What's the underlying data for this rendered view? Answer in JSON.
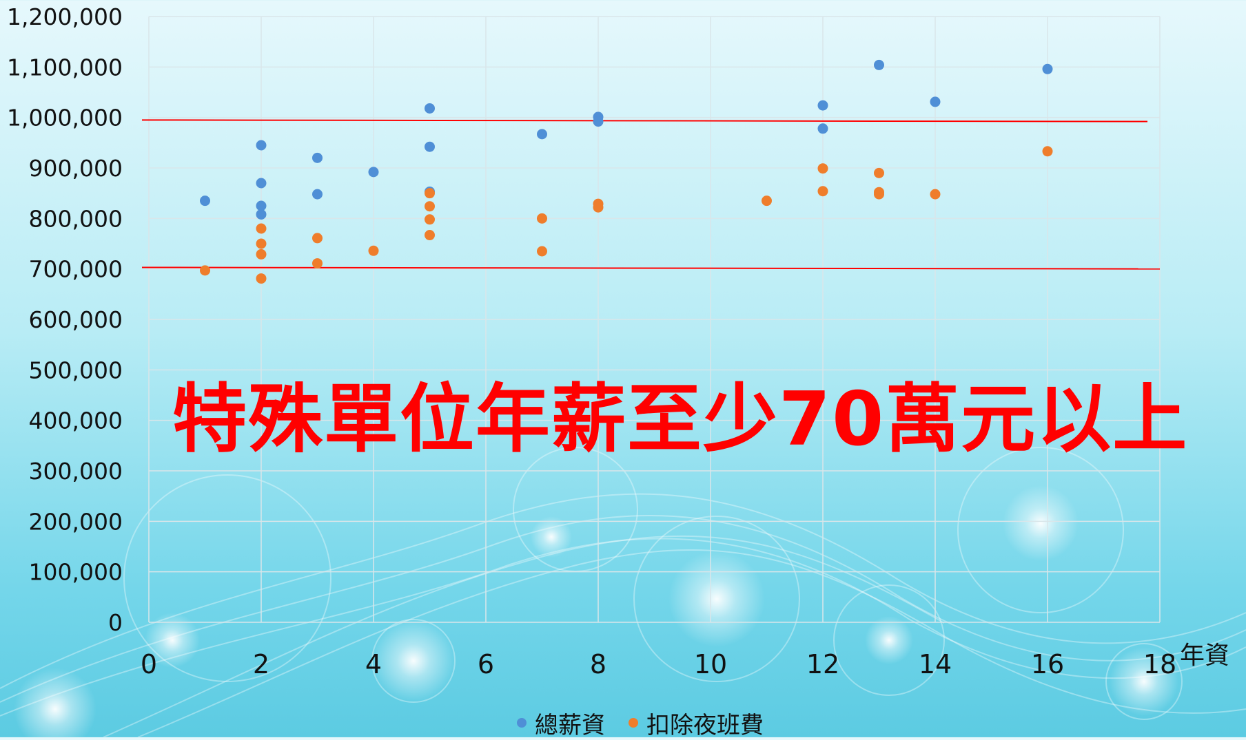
{
  "chart_data": {
    "type": "scatter",
    "title": "",
    "xlabel": "年資",
    "ylabel": "",
    "xlim": [
      0,
      18
    ],
    "ylim": [
      0,
      1200000
    ],
    "x_ticks": [
      "0",
      "2",
      "4",
      "6",
      "8",
      "10",
      "12",
      "14",
      "16",
      "18"
    ],
    "y_ticks": [
      "0",
      "100,000",
      "200,000",
      "300,000",
      "400,000",
      "500,000",
      "600,000",
      "700,000",
      "800,000",
      "900,000",
      "1,000,000",
      "1,100,000",
      "1,200,000"
    ],
    "grid": true,
    "legend_position": "bottom",
    "series": [
      {
        "name": "總薪資",
        "color": "#4f8fd6",
        "points": [
          [
            1,
            835000
          ],
          [
            2,
            945000
          ],
          [
            2,
            870000
          ],
          [
            2,
            825000
          ],
          [
            2,
            808000
          ],
          [
            3,
            920000
          ],
          [
            3,
            848000
          ],
          [
            4,
            892000
          ],
          [
            5,
            1018000
          ],
          [
            5,
            942000
          ],
          [
            5,
            853000
          ],
          [
            7,
            967000
          ],
          [
            8,
            1001000
          ],
          [
            8,
            992000
          ],
          [
            12,
            1024000
          ],
          [
            12,
            978000
          ],
          [
            13,
            1104000
          ],
          [
            14,
            1031000
          ],
          [
            16,
            1096000
          ]
        ]
      },
      {
        "name": "扣除夜班費",
        "color": "#ef7d2b",
        "points": [
          [
            1,
            697000
          ],
          [
            2,
            780000
          ],
          [
            2,
            750000
          ],
          [
            2,
            729000
          ],
          [
            2,
            681000
          ],
          [
            3,
            761000
          ],
          [
            3,
            711000
          ],
          [
            4,
            736000
          ],
          [
            5,
            850000
          ],
          [
            5,
            824000
          ],
          [
            5,
            798000
          ],
          [
            5,
            767000
          ],
          [
            7,
            800000
          ],
          [
            7,
            735000
          ],
          [
            8,
            829000
          ],
          [
            8,
            822000
          ],
          [
            11,
            835000
          ],
          [
            12,
            899000
          ],
          [
            12,
            854000
          ],
          [
            13,
            890000
          ],
          [
            13,
            852000
          ],
          [
            13,
            848000
          ],
          [
            14,
            848000
          ],
          [
            16,
            933000
          ]
        ]
      }
    ],
    "reference_lines": [
      {
        "y_start": 995000,
        "y_end": 992000,
        "color": "#ff0000"
      },
      {
        "y_start": 703000,
        "y_end": 700000,
        "color": "#ff0000"
      }
    ],
    "annotation": "特殊單位年薪至少70萬元以上"
  }
}
